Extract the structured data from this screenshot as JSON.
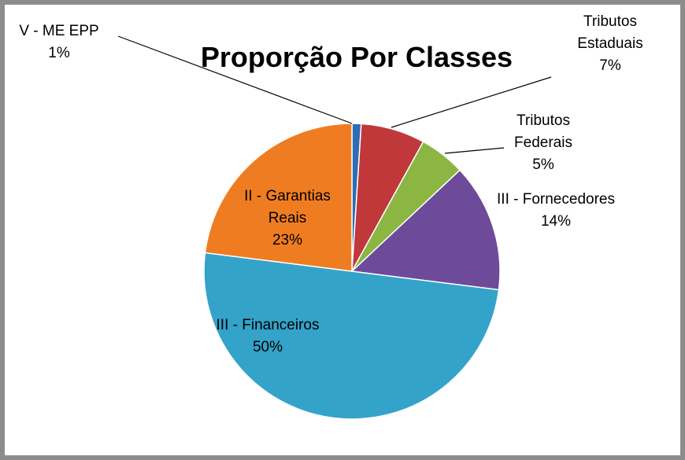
{
  "chart_data": {
    "type": "pie",
    "title": "Proporção Por Classes",
    "categories": [
      "V - ME EPP",
      "Tributos Estaduais",
      "Tributos Federais",
      "III - Fornecedores",
      "III - Financeiros",
      "II - Garantias Reais"
    ],
    "values": [
      1,
      7,
      5,
      14,
      50,
      23
    ],
    "value_labels": [
      "1%",
      "7%",
      "5%",
      "14%",
      "50%",
      "23%"
    ],
    "colors": [
      "#2e6db4",
      "#c0383a",
      "#8ab641",
      "#6e4a9a",
      "#34a3c9",
      "#f07c22"
    ]
  }
}
